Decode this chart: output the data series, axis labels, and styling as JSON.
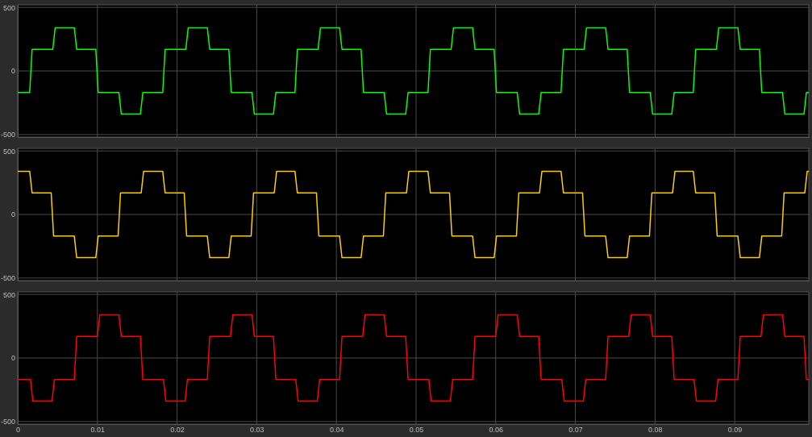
{
  "chart_data": [
    {
      "type": "line",
      "color": "#00ff00",
      "grid": true,
      "tick_labels": "y",
      "xlim": [
        0,
        0.0993
      ],
      "xticks": [
        0,
        0.01,
        0.02,
        0.03,
        0.04,
        0.05,
        0.06,
        0.07,
        0.08,
        0.09
      ],
      "ylim": [
        -520,
        520
      ],
      "yticks": [
        -500,
        0,
        500
      ],
      "x": [
        0,
        0.0015,
        0.0018,
        0.0044,
        0.0047,
        0.0071,
        0.0074,
        0.0098,
        0.0101,
        0.0127,
        0.013,
        0.0154,
        0.0157,
        0.0182,
        0.0185,
        0.0211,
        0.0214,
        0.0238,
        0.0241,
        0.0265,
        0.0268,
        0.0294,
        0.0297,
        0.0321,
        0.0324,
        0.0348,
        0.0351,
        0.0377,
        0.038,
        0.0404,
        0.0407,
        0.0431,
        0.0434,
        0.046,
        0.0463,
        0.0487,
        0.049,
        0.0515,
        0.0518,
        0.0544,
        0.0547,
        0.0571,
        0.0574,
        0.0598,
        0.0601,
        0.0627,
        0.063,
        0.0654,
        0.0657,
        0.0682,
        0.0685,
        0.0711,
        0.0714,
        0.0738,
        0.0741,
        0.0765,
        0.0768,
        0.0794,
        0.0797,
        0.0821,
        0.0824,
        0.0848,
        0.0851,
        0.0877,
        0.088,
        0.0904,
        0.0907,
        0.0931,
        0.0934,
        0.096,
        0.0963,
        0.0987,
        0.099,
        0.0993
      ],
      "values": [
        -170,
        -170,
        170,
        170,
        340,
        340,
        170,
        170,
        -170,
        -170,
        -340,
        -340,
        -170,
        -170,
        170,
        170,
        340,
        340,
        170,
        170,
        -170,
        -170,
        -340,
        -340,
        -170,
        -170,
        170,
        170,
        340,
        340,
        170,
        170,
        -170,
        -170,
        -340,
        -340,
        -170,
        -170,
        170,
        170,
        340,
        340,
        170,
        170,
        -170,
        -170,
        -340,
        -340,
        -170,
        -170,
        170,
        170,
        340,
        340,
        170,
        170,
        -170,
        -170,
        -340,
        -340,
        -170,
        -170,
        170,
        170,
        340,
        340,
        170,
        170,
        -170,
        -170,
        -340,
        -340,
        -170,
        -170
      ]
    },
    {
      "type": "line",
      "color": "#ffcc00",
      "grid": true,
      "tick_labels": "y",
      "xlim": [
        0,
        0.0993
      ],
      "xticks": [
        0,
        0.01,
        0.02,
        0.03,
        0.04,
        0.05,
        0.06,
        0.07,
        0.08,
        0.09
      ],
      "ylim": [
        -520,
        520
      ],
      "yticks": [
        -500,
        0,
        500
      ],
      "x": [
        0,
        0.0015,
        0.0018,
        0.0042,
        0.0045,
        0.0071,
        0.0074,
        0.0098,
        0.0101,
        0.0126,
        0.0129,
        0.0155,
        0.0158,
        0.0182,
        0.0185,
        0.0209,
        0.0212,
        0.0238,
        0.0241,
        0.0265,
        0.0268,
        0.0293,
        0.0296,
        0.0322,
        0.0325,
        0.0348,
        0.0351,
        0.0375,
        0.0378,
        0.0404,
        0.0407,
        0.0431,
        0.0434,
        0.0459,
        0.0462,
        0.0488,
        0.0491,
        0.0515,
        0.0518,
        0.0542,
        0.0545,
        0.0571,
        0.0574,
        0.0598,
        0.0601,
        0.0626,
        0.0629,
        0.0655,
        0.0658,
        0.0682,
        0.0685,
        0.0709,
        0.0712,
        0.0738,
        0.0741,
        0.0765,
        0.0768,
        0.0793,
        0.0796,
        0.0822,
        0.0825,
        0.0848,
        0.0851,
        0.0875,
        0.0878,
        0.0904,
        0.0907,
        0.0931,
        0.0934,
        0.0959,
        0.0962,
        0.0988,
        0.0991,
        0.0993
      ],
      "values": [
        340,
        340,
        170,
        170,
        -170,
        -170,
        -340,
        -340,
        -170,
        -170,
        170,
        170,
        340,
        340,
        170,
        170,
        -170,
        -170,
        -340,
        -340,
        -170,
        -170,
        170,
        170,
        340,
        340,
        170,
        170,
        -170,
        -170,
        -340,
        -340,
        -170,
        -170,
        170,
        170,
        340,
        340,
        170,
        170,
        -170,
        -170,
        -340,
        -340,
        -170,
        -170,
        170,
        170,
        340,
        340,
        170,
        170,
        -170,
        -170,
        -340,
        -340,
        -170,
        -170,
        170,
        170,
        340,
        340,
        170,
        170,
        -170,
        -170,
        -340,
        -340,
        -170,
        -170,
        170,
        170,
        340,
        340
      ]
    },
    {
      "type": "line",
      "color": "#ff0000",
      "grid": true,
      "xlim": [
        0,
        0.0993
      ],
      "xticks": [
        0,
        0.01,
        0.02,
        0.03,
        0.04,
        0.05,
        0.06,
        0.07,
        0.08,
        0.09
      ],
      "ylim": [
        -520,
        520
      ],
      "yticks": [
        -500,
        0,
        500
      ],
      "x": [
        0,
        0.0016,
        0.0019,
        0.0043,
        0.0046,
        0.0071,
        0.0074,
        0.01,
        0.0103,
        0.0127,
        0.013,
        0.0154,
        0.0157,
        0.0183,
        0.0186,
        0.021,
        0.0213,
        0.0238,
        0.0241,
        0.0267,
        0.027,
        0.0294,
        0.0297,
        0.0321,
        0.0324,
        0.0349,
        0.0352,
        0.0376,
        0.0379,
        0.0404,
        0.0407,
        0.0433,
        0.0436,
        0.046,
        0.0463,
        0.0487,
        0.049,
        0.0516,
        0.0519,
        0.0543,
        0.0546,
        0.0571,
        0.0574,
        0.06,
        0.0603,
        0.0627,
        0.063,
        0.0654,
        0.0657,
        0.0683,
        0.0686,
        0.071,
        0.0713,
        0.0738,
        0.0741,
        0.0767,
        0.077,
        0.0794,
        0.0797,
        0.0821,
        0.0824,
        0.0849,
        0.0852,
        0.0876,
        0.0879,
        0.0904,
        0.0907,
        0.0933,
        0.0936,
        0.096,
        0.0963,
        0.0987,
        0.099,
        0.0993
      ],
      "values": [
        -170,
        -170,
        -340,
        -340,
        -170,
        -170,
        170,
        170,
        340,
        340,
        170,
        170,
        -170,
        -170,
        -340,
        -340,
        -170,
        -170,
        170,
        170,
        340,
        340,
        170,
        170,
        -170,
        -170,
        -340,
        -340,
        -170,
        -170,
        170,
        170,
        340,
        340,
        170,
        170,
        -170,
        -170,
        -340,
        -340,
        -170,
        -170,
        170,
        170,
        340,
        340,
        170,
        170,
        -170,
        -170,
        -340,
        -340,
        -170,
        -170,
        170,
        170,
        340,
        340,
        170,
        170,
        -170,
        -170,
        -340,
        -340,
        -170,
        -170,
        170,
        170,
        340,
        340,
        170,
        170,
        -170,
        -170
      ]
    }
  ]
}
